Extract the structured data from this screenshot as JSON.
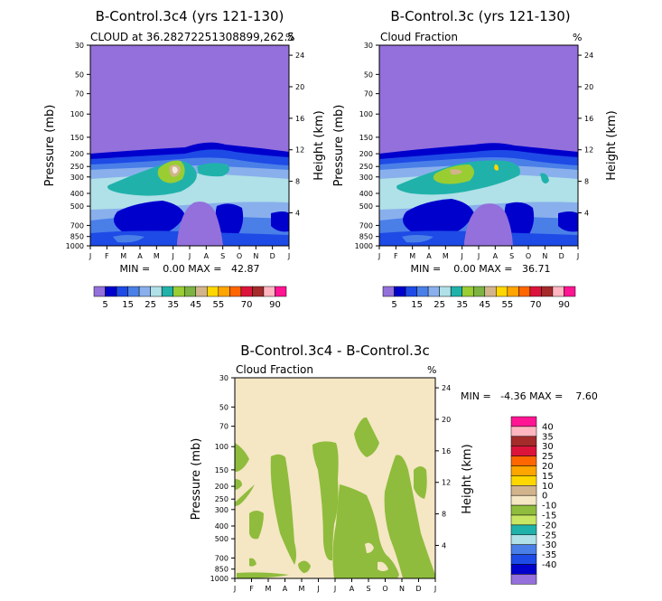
{
  "chart_data": [
    {
      "type": "heatmap",
      "id": "top-left",
      "title": "B-Control.3c4 (yrs 121-130)",
      "subtitle_left": "CLOUD at 36.28272251308899,262.5",
      "subtitle_right": "%",
      "ylabel_left": "Pressure (mb)",
      "ylabel_right": "Height (km)",
      "xlabel": "",
      "stats": "MIN =    0.00 MAX =   42.87",
      "min": 0.0,
      "max": 42.87
    },
    {
      "type": "heatmap",
      "id": "top-right",
      "title": "B-Control.3c (yrs 121-130)",
      "subtitle_left": "Cloud Fraction",
      "subtitle_right": "%",
      "ylabel_left": "Pressure (mb)",
      "ylabel_right": "Height (km)",
      "xlabel": "",
      "stats": "MIN =    0.00 MAX =   36.71",
      "min": 0.0,
      "max": 36.71
    },
    {
      "type": "heatmap",
      "id": "bottom",
      "title": "B-Control.3c4 - B-Control.3c",
      "subtitle_left": "Cloud Fraction",
      "subtitle_right": "%",
      "ylabel_left": "Pressure (mb)",
      "ylabel_right": "Height (km)",
      "xlabel": "",
      "stats": "MIN =   -4.36 MAX =    7.60",
      "min": -4.36,
      "max": 7.6
    }
  ],
  "axes": {
    "months": [
      "J",
      "F",
      "M",
      "A",
      "M",
      "J",
      "J",
      "A",
      "S",
      "O",
      "N",
      "D",
      "J"
    ],
    "pressure_ticks": [
      "30",
      "50",
      "70",
      "100",
      "150",
      "200",
      "250",
      "300",
      "400",
      "500",
      "700",
      "850",
      "1000"
    ],
    "pressure_values": [
      30,
      50,
      70,
      100,
      150,
      200,
      250,
      300,
      400,
      500,
      700,
      850,
      1000
    ],
    "height_ticks": [
      "24",
      "20",
      "16",
      "12",
      "8",
      "4"
    ],
    "height_values": [
      24,
      20,
      16,
      12,
      8,
      4
    ]
  },
  "colorbar_top": {
    "labels": [
      "5",
      "15",
      "25",
      "35",
      "45",
      "55",
      "70",
      "90"
    ],
    "colors": [
      "#9370db",
      "#0000cd",
      "#1e4ae6",
      "#4a7fe8",
      "#89b0ec",
      "#b0e0e8",
      "#20b2aa",
      "#9acd32",
      "#7cb342",
      "#d2b48c",
      "#ffd700",
      "#ffa500",
      "#ff6600",
      "#dc143c",
      "#a52a2a",
      "#ffb6c1",
      "#ff1493"
    ]
  },
  "colorbar_bottom": {
    "labels": [
      "40",
      "35",
      "30",
      "25",
      "20",
      "15",
      "10",
      "0",
      "-10",
      "-15",
      "-20",
      "-25",
      "-30",
      "-35",
      "-40"
    ],
    "colors": [
      "#ff1493",
      "#ffb6c1",
      "#a52a2a",
      "#dc143c",
      "#ff6600",
      "#ffa500",
      "#ffd700",
      "#d2b48c",
      "#f5e6c4",
      "#8fbc3c",
      "#c8e664",
      "#20b2aa",
      "#b0e0e8",
      "#4a7fe8",
      "#1e4ae6",
      "#0000cd",
      "#9370db"
    ]
  }
}
